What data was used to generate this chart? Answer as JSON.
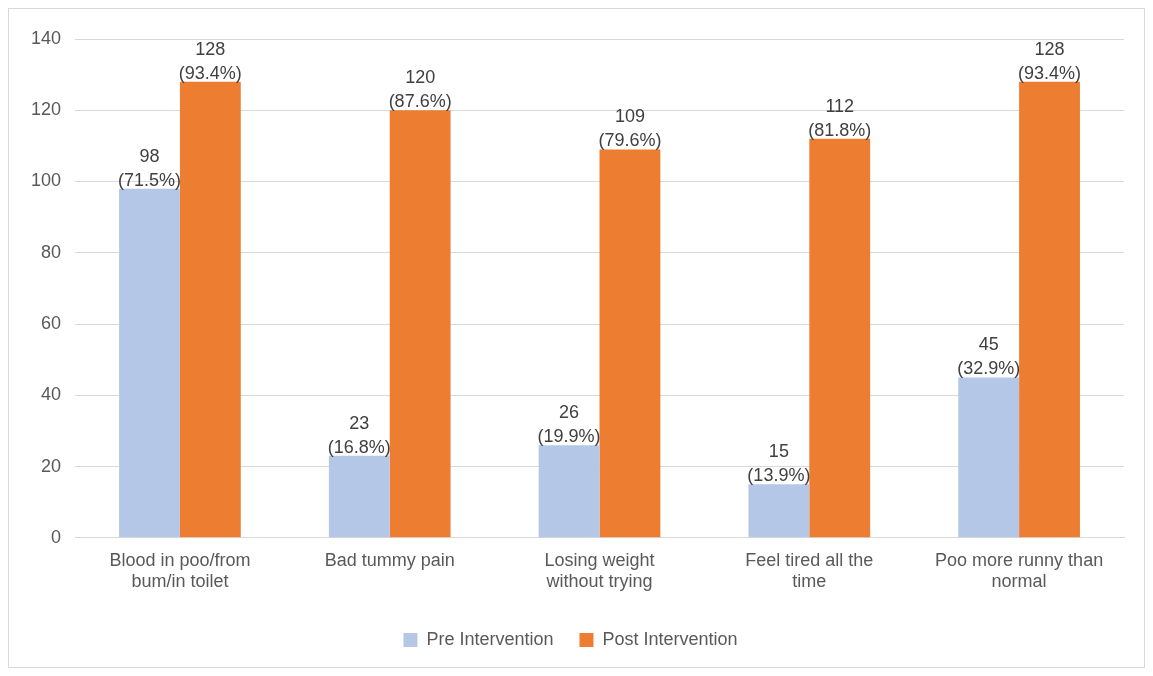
{
  "chart_data": {
    "type": "bar",
    "categories": [
      "Blood in poo/from bum/in toilet",
      "Bad tummy pain",
      "Losing weight without trying",
      "Feel tired all the time",
      "Poo more runny than normal"
    ],
    "series": [
      {
        "name": "Pre Intervention",
        "color": "#b4c7e7",
        "values": [
          98,
          23,
          26,
          15,
          45
        ],
        "value_labels": [
          "98 (71.5%)",
          "23 (16.8%)",
          "26 (19.9%)",
          "15 (13.9%)",
          "45 (32.9%)"
        ]
      },
      {
        "name": "Post Intervention",
        "color": "#ed7d31",
        "values": [
          128,
          120,
          109,
          112,
          128
        ],
        "value_labels": [
          "128 (93.4%)",
          "120 (87.6%)",
          "109 (79.6%)",
          "112 (81.8%)",
          "128 (93.4%)"
        ]
      }
    ],
    "ylim": [
      0,
      140
    ],
    "yticks": [
      0,
      20,
      40,
      60,
      80,
      100,
      120,
      140
    ],
    "grid": "y",
    "legend": "bottom"
  }
}
